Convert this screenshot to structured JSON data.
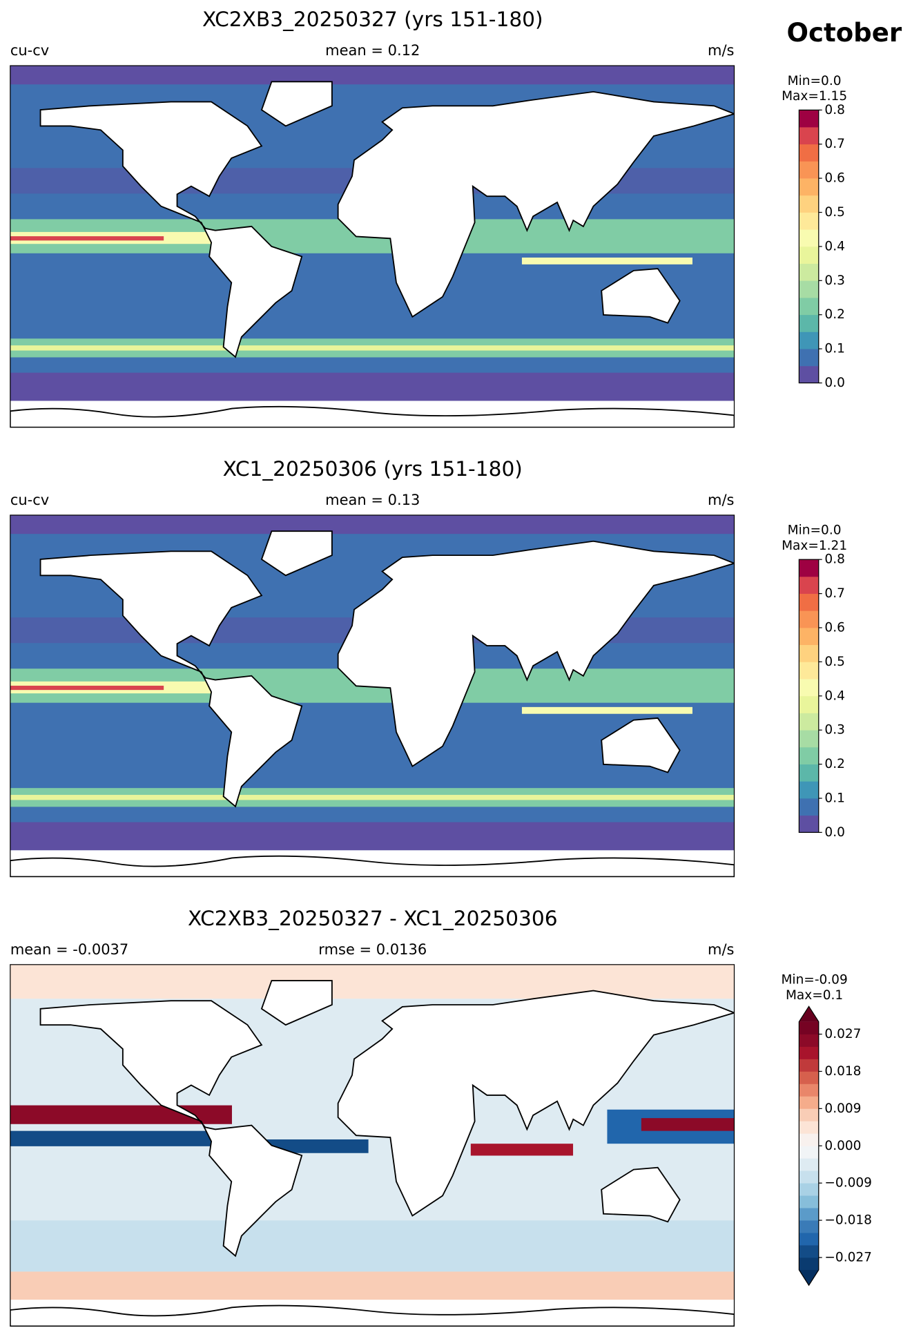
{
  "title": "October",
  "panels": [
    {
      "title": "XC2XB3_20250327 (yrs 151-180)",
      "left": "cu-cv",
      "center": "mean = 0.12",
      "right": "m/s",
      "colorbar": {
        "min_label": "Min=0.0",
        "max_label": "Max=1.15",
        "levels": [
          0,
          0.05,
          0.1,
          0.15,
          0.2,
          0.25,
          0.3,
          0.35,
          0.4,
          0.45,
          0.5,
          0.55,
          0.6,
          0.65,
          0.7,
          0.75,
          0.8
        ],
        "colors": [
          "#5e4fa2",
          "#3f71b1",
          "#3f96b7",
          "#5cb7a9",
          "#80cca5",
          "#a7dca4",
          "#ccea9f",
          "#e9f59b",
          "#f8fbb0",
          "#fee999",
          "#fed27f",
          "#fdb365",
          "#f99455",
          "#f06e44",
          "#d9444e",
          "#9e0142"
        ],
        "ylim": [
          0,
          0.8
        ],
        "ticks": [
          {
            "value": 0,
            "label": "0.0"
          },
          0.1,
          0.2,
          0.3,
          0.4,
          0.5,
          0.6,
          0.7,
          0.8
        ]
      }
    },
    {
      "title": "XC1_20250306 (yrs 151-180)",
      "left": "cu-cv",
      "center": "mean = 0.13",
      "right": "m/s",
      "colorbar": {
        "min_label": "Min=0.0",
        "max_label": "Max=1.21",
        "levels": [
          0,
          0.05,
          0.1,
          0.15,
          0.2,
          0.25,
          0.3,
          0.35,
          0.4,
          0.45,
          0.5,
          0.55,
          0.6,
          0.65,
          0.7,
          0.75,
          0.8
        ],
        "colors": [
          "#5e4fa2",
          "#3f71b1",
          "#3f96b7",
          "#5cb7a9",
          "#80cca5",
          "#a7dca4",
          "#ccea9f",
          "#e9f59b",
          "#f8fbb0",
          "#fee999",
          "#fed27f",
          "#fdb365",
          "#f99455",
          "#f06e44",
          "#d9444e",
          "#9e0142"
        ],
        "ylim": [
          0,
          0.8
        ],
        "ticks": [
          {
            "value": 0,
            "label": "0.0"
          },
          0.1,
          0.2,
          0.3,
          0.4,
          0.5,
          0.6,
          0.7,
          0.8
        ]
      }
    },
    {
      "title": "XC2XB3_20250327 - XC1_20250306",
      "left": "mean = -0.0037",
      "center": "rmse = 0.0136",
      "right": "m/s",
      "colorbar": {
        "min_label": "Min=-0.09",
        "max_label": "Max=0.1",
        "levels": [
          -0.03,
          -0.027,
          -0.024,
          -0.021,
          -0.018,
          -0.015,
          -0.012,
          -0.009,
          -0.006,
          -0.003,
          0,
          0.003,
          0.006,
          0.009,
          0.012,
          0.015,
          0.018,
          0.021,
          0.024,
          0.027,
          0.03
        ],
        "colors": [
          "#0a3b70",
          "#134c87",
          "#2166ac",
          "#3a7bb7",
          "#5b9bc9",
          "#87beda",
          "#a9d1e5",
          "#c7e0ed",
          "#deebf2",
          "#f1f4f6",
          "#f8f1ee",
          "#fce4d6",
          "#f9cdb6",
          "#f5ac8b",
          "#e9866a",
          "#d6604d",
          "#c03a3b",
          "#a8142c",
          "#8c0a28",
          "#760323"
        ],
        "extend_colors": [
          "#053061",
          "#67001f"
        ],
        "ylim": [
          -0.03,
          0.03
        ],
        "ticks": [
          {
            "value": -0.027,
            "label": "−0.027"
          },
          {
            "value": -0.018,
            "label": "−0.018"
          },
          {
            "value": -0.009,
            "label": "−0.009"
          },
          {
            "value": 0,
            "label": "0.000"
          },
          0.009,
          0.018,
          0.027
        ]
      }
    }
  ]
}
